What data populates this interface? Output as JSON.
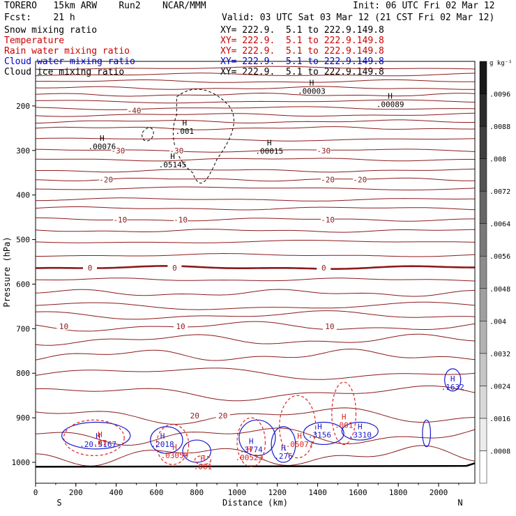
{
  "header": {
    "model": "TORERO   15km ARW    Run2    NCAR/MMM",
    "init": "Init: 06 UTC Fri 02 Mar 12",
    "fcst": "Fcst:    21 h",
    "valid": "Valid: 03 UTC Sat 03 Mar 12 (21 CST Fri 02 Mar 12)"
  },
  "fields": [
    {
      "name": "Snow mixing ratio",
      "xy": "XY= 222.9.  5.1 to 222.9.149.8",
      "color": "#000000"
    },
    {
      "name": "Temperature",
      "xy": "XY= 222.9.  5.1 to 222.9.149.8",
      "color": "#cc0000"
    },
    {
      "name": "Rain water mixing ratio",
      "xy": "XY= 222.9.  5.1 to 222.9.149.8",
      "color": "#cc0000"
    },
    {
      "name": "Cloud water mixing ratio",
      "xy": "XY= 222.9.  5.1 to 222.9.149.8",
      "color": "#0000cc"
    },
    {
      "name": "Cloud ice mixing ratio",
      "xy": "XY= 222.9.  5.1 to 222.9.149.8",
      "color": "#000000"
    }
  ],
  "chart_data": {
    "type": "cross-section",
    "xlabel": "Distance (km)",
    "ylabel": "Pressure (hPa)",
    "xlim": [
      0,
      2180
    ],
    "ylim": [
      1050,
      100
    ],
    "x_ticks": [
      0,
      200,
      400,
      600,
      800,
      1000,
      1200,
      1400,
      1600,
      1800,
      2000
    ],
    "y_ticks": [
      200,
      300,
      400,
      500,
      600,
      700,
      800,
      900,
      1000
    ],
    "endpoint_left": "S",
    "endpoint_right": "N",
    "colorbar": {
      "units": "g kg⁻¹",
      "levels": [
        0.0008,
        0.0016,
        0.0024,
        0.0032,
        0.004,
        0.0048,
        0.0056,
        0.0064,
        0.0072,
        0.008,
        0.0088,
        0.0096
      ],
      "tick_labels": [
        ".0008",
        ".0016",
        ".0024",
        ".0032",
        ".004",
        ".0048",
        ".0056",
        ".0064",
        ".0072",
        ".008",
        ".0088",
        ".0096"
      ]
    },
    "temperature_contours": [
      {
        "label": "-40",
        "p": 210,
        "labels_x": [
          490
        ]
      },
      {
        "label": "-30",
        "p": 300,
        "labels_x": [
          410,
          700,
          1430
        ]
      },
      {
        "label": "-20",
        "p": 365,
        "labels_x": [
          350,
          1450,
          1610
        ]
      },
      {
        "label": "-10",
        "p": 455,
        "labels_x": [
          420,
          720,
          1450
        ]
      },
      {
        "label": "0",
        "p": 563,
        "labels_x": [
          270,
          690,
          1430
        ]
      },
      {
        "label": "10",
        "p": 695,
        "labels_x": [
          140,
          720,
          1460
        ]
      },
      {
        "label": "20",
        "p": 895,
        "labels_x": [
          790,
          930
        ]
      }
    ],
    "snow_maxima": [
      {
        "label": ".00076",
        "x": 330,
        "p": 285
      },
      {
        "label": ".05145",
        "x": 680,
        "p": 325
      },
      {
        "label": ".00015",
        "x": 1160,
        "p": 295
      },
      {
        "label": ".00003",
        "x": 1370,
        "p": 160
      },
      {
        "label": ".00089",
        "x": 1760,
        "p": 190
      },
      {
        "label": ".001",
        "x": 740,
        "p": 250
      }
    ],
    "cloud_water_maxima": [
      {
        "label": ".3156",
        "x": 1410,
        "p": 932
      },
      {
        "label": ".3310",
        "x": 1610,
        "p": 932
      },
      {
        "label": ".1632",
        "x": 2070,
        "p": 825
      },
      {
        "label": ".2018",
        "x": 630,
        "p": 953
      },
      {
        "label": ".3774",
        "x": 1070,
        "p": 965
      },
      {
        "label": ".276",
        "x": 1230,
        "p": 980
      },
      {
        "label": ".20.5167",
        "x": 310,
        "p": 953
      }
    ],
    "rain_maxima": [
      {
        "label": ".07",
        "x": 320,
        "p": 950
      },
      {
        "label": ".03059",
        "x": 690,
        "p": 978
      },
      {
        "label": ".00523",
        "x": 1060,
        "p": 983
      },
      {
        "label": ".05077",
        "x": 1310,
        "p": 953
      },
      {
        "label": ".001",
        "x": 1530,
        "p": 910
      },
      {
        "label": ".001",
        "x": 830,
        "p": 1003
      }
    ]
  }
}
